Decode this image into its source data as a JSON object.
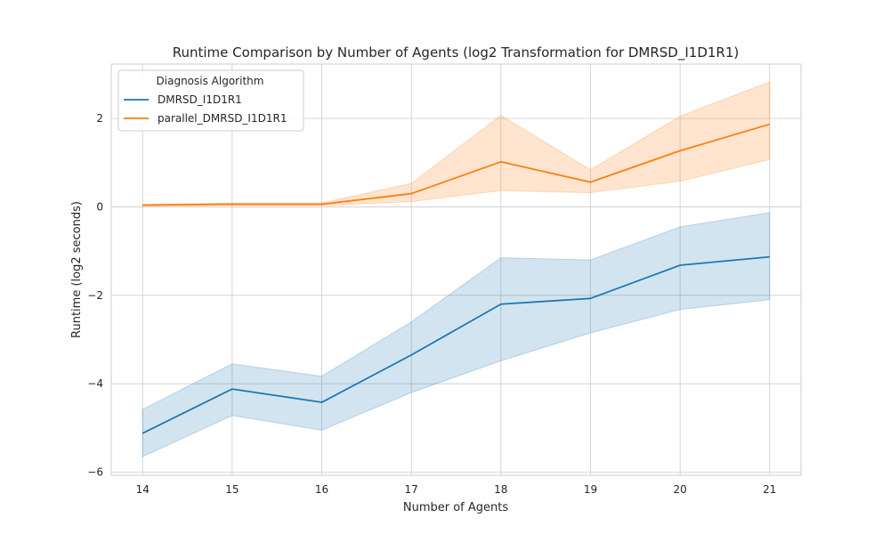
{
  "chart_data": {
    "type": "line",
    "title": "Runtime Comparison by Number of Agents (log2 Transformation for DMRSD_I1D1R1)",
    "xlabel": "Number of Agents",
    "ylabel": "Runtime (log2 seconds)",
    "x": [
      14,
      15,
      16,
      17,
      18,
      19,
      20,
      21
    ],
    "xlim": [
      13.65,
      21.35
    ],
    "ylim": [
      -6.07,
      3.23
    ],
    "xticks": [
      14,
      15,
      16,
      17,
      18,
      19,
      20,
      21
    ],
    "yticks": [
      -6,
      -4,
      -2,
      0,
      2
    ],
    "grid": true,
    "legend": {
      "title": "Diagnosis Algorithm",
      "placement": "top-left"
    },
    "series": [
      {
        "name": "DMRSD_I1D1R1",
        "color": "#1f77b4",
        "values": [
          -5.12,
          -4.12,
          -4.42,
          -3.35,
          -2.2,
          -2.07,
          -1.32,
          -1.13
        ],
        "ci_lower": [
          -5.65,
          -4.72,
          -5.05,
          -4.2,
          -3.48,
          -2.85,
          -2.32,
          -2.1
        ],
        "ci_upper": [
          -4.58,
          -3.55,
          -3.83,
          -2.6,
          -1.15,
          -1.2,
          -0.45,
          -0.13
        ]
      },
      {
        "name": "parallel_DMRSD_I1D1R1",
        "color": "#ff7f0e",
        "values": [
          0.04,
          0.06,
          0.06,
          0.3,
          1.02,
          0.56,
          1.27,
          1.87
        ],
        "ci_lower": [
          0.02,
          0.03,
          0.03,
          0.12,
          0.37,
          0.32,
          0.58,
          1.07
        ],
        "ci_upper": [
          0.06,
          0.09,
          0.09,
          0.53,
          2.07,
          0.84,
          2.05,
          2.83
        ]
      }
    ]
  }
}
